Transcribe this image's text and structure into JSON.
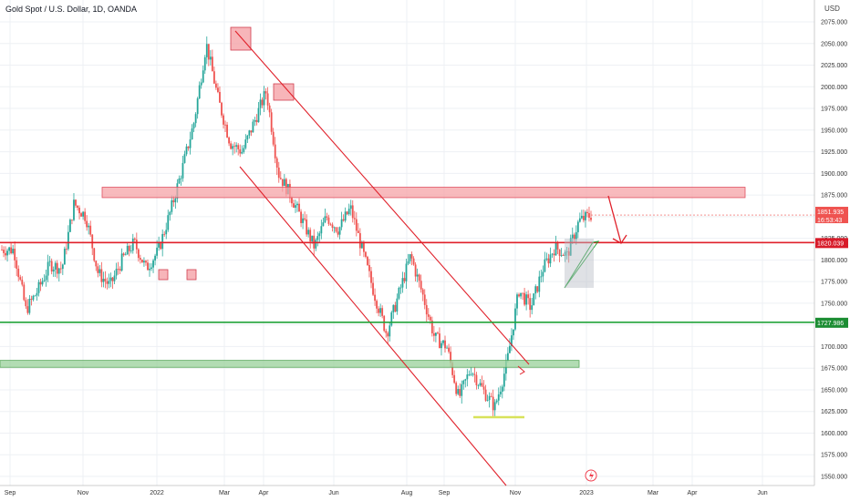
{
  "header": {
    "title": "Gold Spot / U.S. Dollar, 1D, OANDA",
    "currency": "USD"
  },
  "price_axis": {
    "ticks": [
      "2075.000",
      "2050.000",
      "2025.000",
      "2000.000",
      "1975.000",
      "1950.000",
      "1925.000",
      "1900.000",
      "1875.000",
      "1850.000",
      "1825.000",
      "1800.000",
      "1775.000",
      "1750.000",
      "1725.000",
      "1700.000",
      "1675.000",
      "1650.000",
      "1625.000",
      "1600.000",
      "1575.000",
      "1550.000"
    ]
  },
  "time_axis": {
    "labels": [
      "Sep",
      "Nov",
      "2022",
      "Mar",
      "Apr",
      "Jun",
      "Aug",
      "Sep",
      "Nov",
      "2023",
      "Mar",
      "Apr",
      "Jun"
    ]
  },
  "price_labels": {
    "current_price": "1851.935",
    "countdown": "16:53:43",
    "red_level": "1820.039",
    "green_level": "1727.986"
  },
  "colors": {
    "up_candle": "#26a69a",
    "down_candle": "#ef5350",
    "red_line": "#e0202a",
    "green_line": "#23a33a",
    "resistance_zone": "#f5a3a7",
    "support_zone": "#9fd3a0",
    "floor_line": "#d8e25a"
  },
  "icons": {
    "alert": "lightning-icon"
  },
  "chart_data": {
    "type": "candlestick",
    "title": "Gold Spot / U.S. Dollar, 1D, OANDA",
    "ylim": [
      1545,
      2090
    ],
    "y_ticks": [
      2075,
      2050,
      2025,
      2000,
      1975,
      1950,
      1925,
      1900,
      1875,
      1850,
      1825,
      1800,
      1775,
      1750,
      1725,
      1700,
      1675,
      1650,
      1625,
      1600,
      1575,
      1550
    ],
    "x_labels": [
      "Sep",
      "Nov",
      "2022",
      "Mar",
      "Apr",
      "Jun",
      "Aug",
      "Sep",
      "Nov",
      "2023",
      "Mar",
      "Apr",
      "Jun"
    ],
    "close_path": [
      [
        "Aug 2021",
        1812
      ],
      [
        "Sep 2021",
        1812
      ],
      [
        "Sep 2021",
        1742
      ],
      [
        "Oct 2021",
        1765
      ],
      [
        "Oct 2021",
        1795
      ],
      [
        "Nov 2021",
        1790
      ],
      [
        "Nov 2021",
        1865
      ],
      [
        "Nov 2021",
        1850
      ],
      [
        "Dec 2021",
        1785
      ],
      [
        "Dec 2021",
        1770
      ],
      [
        "Dec 2021",
        1800
      ],
      [
        "Jan 2022",
        1820
      ],
      [
        "Jan 2022",
        1790
      ],
      [
        "Feb 2022",
        1810
      ],
      [
        "Feb 2022",
        1855
      ],
      [
        "Feb 2022",
        1905
      ],
      [
        "Mar 2022",
        1960
      ],
      [
        "Mar 2022",
        2050
      ],
      [
        "Mar 2022",
        1985
      ],
      [
        "Mar 2022",
        1935
      ],
      [
        "Apr 2022",
        1925
      ],
      [
        "Apr 2022",
        1960
      ],
      [
        "Apr 2022",
        1995
      ],
      [
        "Apr 2022",
        1900
      ],
      [
        "May 2022",
        1875
      ],
      [
        "May 2022",
        1845
      ],
      [
        "May 2022",
        1815
      ],
      [
        "Jun 2022",
        1850
      ],
      [
        "Jun 2022",
        1835
      ],
      [
        "Jun 2022",
        1860
      ],
      [
        "Jul 2022",
        1810
      ],
      [
        "Jul 2022",
        1760
      ],
      [
        "Jul 2022",
        1715
      ],
      [
        "Aug 2022",
        1760
      ],
      [
        "Aug 2022",
        1805
      ],
      [
        "Aug 2022",
        1760
      ],
      [
        "Sep 2022",
        1710
      ],
      [
        "Sep 2022",
        1700
      ],
      [
        "Sep 2022",
        1640
      ],
      [
        "Oct 2022",
        1675
      ],
      [
        "Oct 2022",
        1650
      ],
      [
        "Oct 2022",
        1630
      ],
      [
        "Nov 2022",
        1680
      ],
      [
        "Nov 2022",
        1765
      ],
      [
        "Nov 2022",
        1745
      ],
      [
        "Dec 2022",
        1790
      ],
      [
        "Dec 2022",
        1815
      ],
      [
        "Dec 2022",
        1805
      ],
      [
        "Jan 2023",
        1845
      ],
      [
        "Jan 2023",
        1852
      ]
    ],
    "levels": [
      {
        "price": 1820.039,
        "color": "red"
      },
      {
        "price": 1727.986,
        "color": "green"
      }
    ],
    "zones": [
      {
        "from": 1872,
        "to": 1884,
        "color": "red"
      },
      {
        "from": 1676,
        "to": 1684,
        "color": "green"
      }
    ],
    "last_price": 1851.935
  }
}
